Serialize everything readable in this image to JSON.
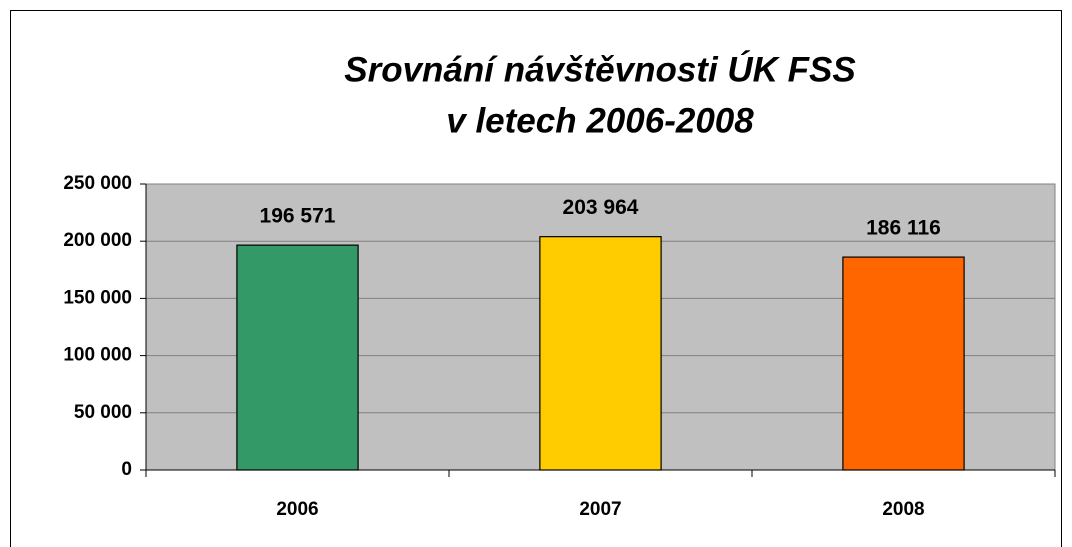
{
  "chart_data": {
    "type": "bar",
    "title": [
      "Srovnání návštěvnosti ÚK FSS",
      "v letech 2006-2008"
    ],
    "categories": [
      "2006",
      "2007",
      "2008"
    ],
    "values": [
      196571,
      203964,
      186116
    ],
    "value_labels": [
      "196 571",
      "203 964",
      "186 116"
    ],
    "colors": [
      "#339966",
      "#ffcc00",
      "#ff6600"
    ],
    "ylim": [
      0,
      250000
    ],
    "yticks": [
      0,
      {
        "value": 50000,
        "label": "50 000"
      },
      {
        "value": 100000,
        "label": "100 000"
      },
      {
        "value": 150000,
        "label": "150 000"
      },
      {
        "value": 200000,
        "label": "200 000"
      },
      {
        "value": 250000,
        "label": "250 000"
      }
    ],
    "grid": true,
    "plot_background": "#c0c0c0"
  }
}
